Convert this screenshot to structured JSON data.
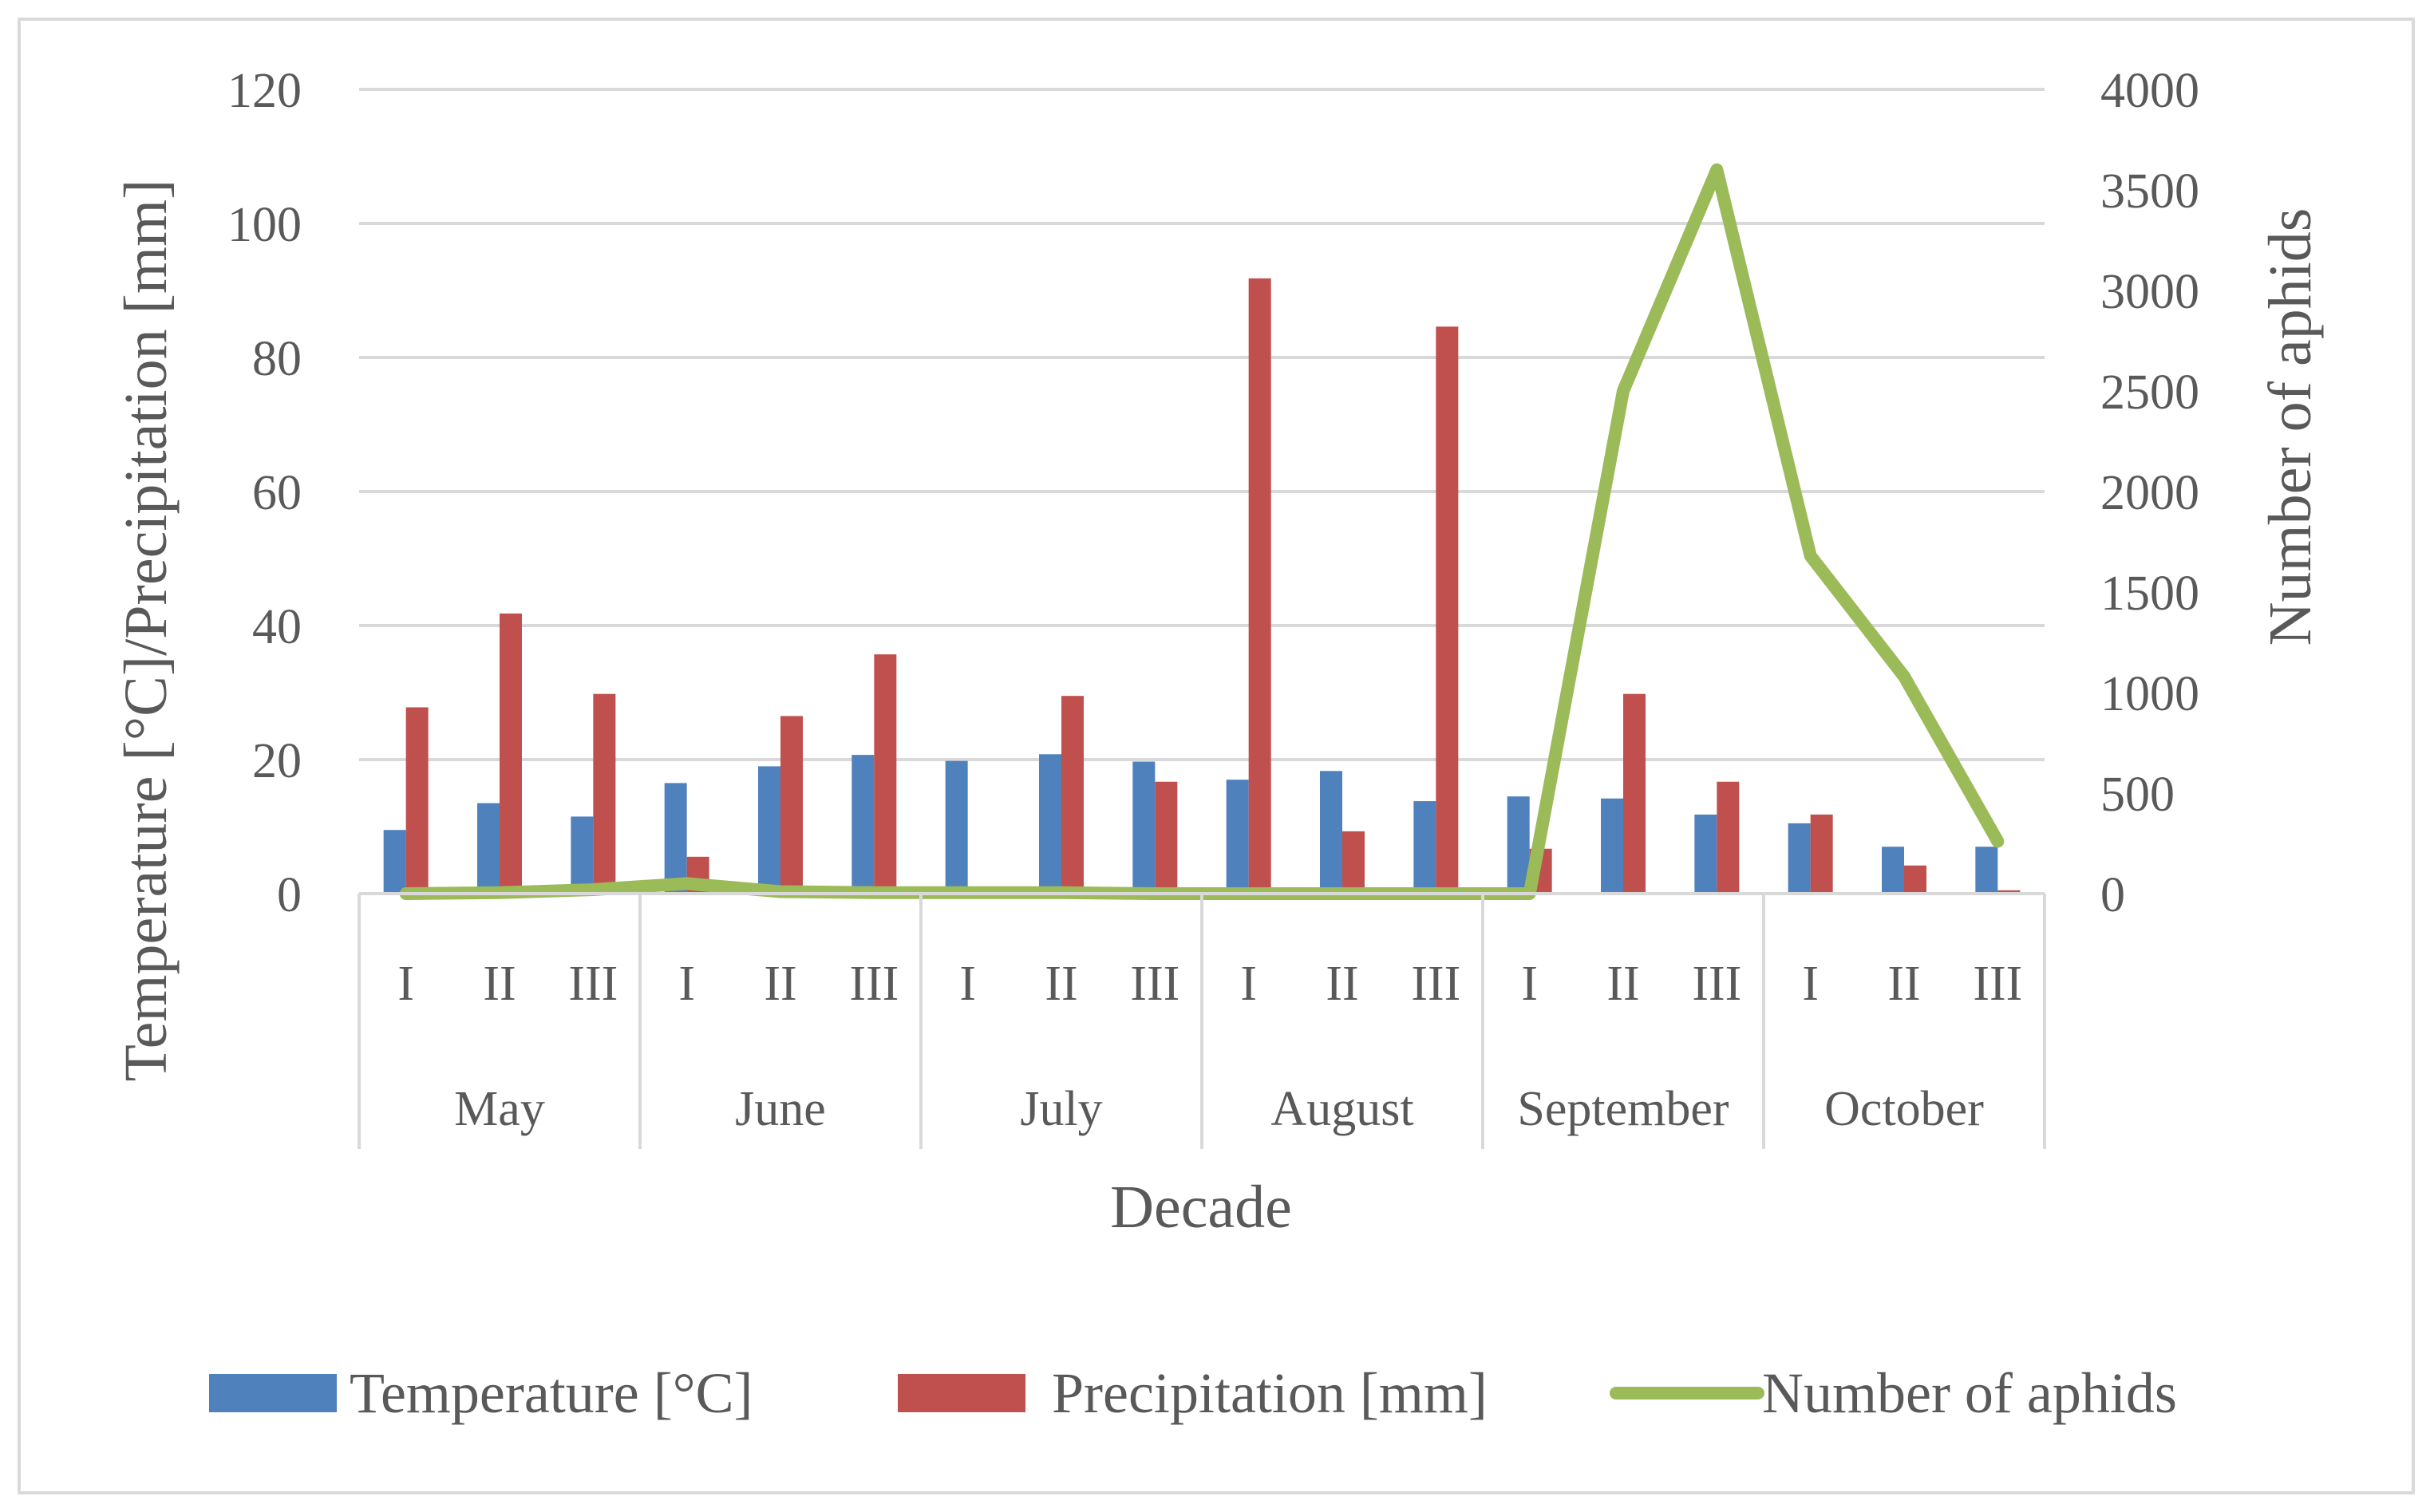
{
  "chart_data": {
    "type": "bar",
    "categories": [
      "I",
      "II",
      "III",
      "I",
      "II",
      "III",
      "I",
      "II",
      "III",
      "I",
      "II",
      "III",
      "I",
      "II",
      "III",
      "I",
      "II",
      "III"
    ],
    "groups": [
      "May",
      "June",
      "July",
      "August",
      "September",
      "October"
    ],
    "series": [
      {
        "name": "Temperature [°C]",
        "kind": "bar",
        "axis": "left",
        "color": "#4f81bd",
        "values": [
          9.5,
          13.5,
          11.5,
          16.5,
          19,
          20.7,
          19.8,
          20.8,
          19.7,
          17,
          18.3,
          13.8,
          14.5,
          14.2,
          11.8,
          10.5,
          7,
          7
        ]
      },
      {
        "name": "Precipitation [mm]",
        "kind": "bar",
        "axis": "left",
        "color": "#c0504d",
        "values": [
          27.8,
          41.8,
          29.8,
          5.5,
          26.5,
          35.7,
          0,
          29.5,
          16.7,
          91.8,
          9.3,
          84.6,
          6.7,
          29.8,
          16.7,
          11.8,
          4.2,
          0.5
        ]
      },
      {
        "name": "Number of aphids",
        "kind": "line",
        "axis": "right",
        "color": "#9bbb59",
        "values": [
          0,
          5,
          20,
          50,
          10,
          5,
          5,
          5,
          0,
          0,
          0,
          0,
          0,
          2500,
          3600,
          1680,
          1080,
          260
        ]
      }
    ],
    "title": "",
    "xlabel": "Decade",
    "ylabel": "Temperature [°C]/Precipitation [mm]",
    "y2label": "Number of aphids",
    "ylim": [
      0,
      120
    ],
    "y2lim": [
      0,
      4000
    ],
    "yticks": [
      0,
      20,
      40,
      60,
      80,
      100,
      120
    ],
    "y2ticks": [
      0,
      500,
      1000,
      1500,
      2000,
      2500,
      3000,
      3500,
      4000
    ],
    "grid": true,
    "legend_position": "bottom"
  }
}
